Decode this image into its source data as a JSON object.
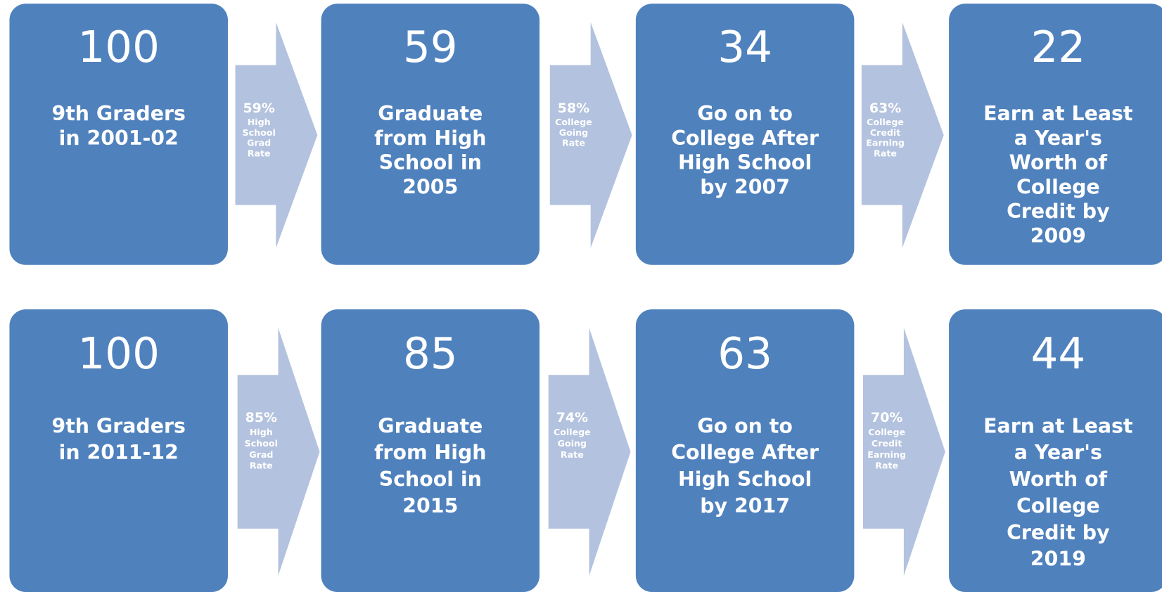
{
  "rows": [
    {
      "boxes": [
        {
          "number": 100,
          "label": [
            "9th Graders",
            "in 2001-02"
          ]
        },
        {
          "number": 59,
          "label": [
            "Graduate",
            "from High",
            "School in",
            "2005"
          ]
        },
        {
          "number": 34,
          "label": [
            "Go on to",
            "College After",
            "High School",
            "by 2007"
          ]
        },
        {
          "number": 22,
          "label": [
            "Earn at Least",
            "a Year's",
            "Worth of",
            "College",
            "Credit by",
            "2009"
          ]
        }
      ],
      "arrows": [
        {
          "rate": "59%",
          "label": [
            "High",
            "School",
            "Grad",
            "Rate"
          ]
        },
        {
          "rate": "58%",
          "label": [
            "College",
            "Going",
            "Rate"
          ]
        },
        {
          "rate": "63%",
          "label": [
            "College",
            "Credit",
            "Earning",
            "Rate"
          ]
        }
      ]
    },
    {
      "boxes": [
        {
          "number": 100,
          "label": [
            "9th Graders",
            "in 2011-12"
          ]
        },
        {
          "number": 85,
          "label": [
            "Graduate",
            "from High",
            "School in",
            "2015"
          ]
        },
        {
          "number": 63,
          "label": [
            "Go on to",
            "College After",
            "High School",
            "by 2017"
          ]
        },
        {
          "number": 44,
          "label": [
            "Earn at Least",
            "a Year's",
            "Worth of",
            "College",
            "Credit by",
            "2019"
          ]
        }
      ],
      "arrows": [
        {
          "rate": "85%",
          "label": [
            "High",
            "School",
            "Grad",
            "Rate"
          ]
        },
        {
          "rate": "74%",
          "label": [
            "College",
            "Going",
            "Rate"
          ]
        },
        {
          "rate": "70%",
          "label": [
            "College",
            "Credit",
            "Earning",
            "Rate"
          ]
        }
      ]
    }
  ]
}
